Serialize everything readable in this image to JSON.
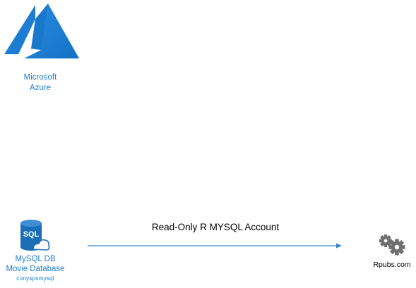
{
  "nodes": {
    "azure": {
      "label_line1": "Microsoft",
      "label_line2": "Azure",
      "icon": "azure-logo-icon"
    },
    "database": {
      "label_line1": "MySQL DB",
      "label_line2": "Movie Database",
      "label_line3": "cunyspsmysql",
      "icon_text": "SQL",
      "icon": "sql-database-icon"
    },
    "rpubs": {
      "label": "Rpubs.com",
      "icon": "gears-icon"
    }
  },
  "connections": [
    {
      "from": "database",
      "to": "rpubs",
      "label": "Read-Only R MYSQL Account"
    }
  ],
  "colors": {
    "azure_blue": "#1e7fd0",
    "sql_blue": "#1a6fb8",
    "arrow_blue": "#3a86c8",
    "gear_gray": "#6f6f6f",
    "text_black": "#000000"
  }
}
